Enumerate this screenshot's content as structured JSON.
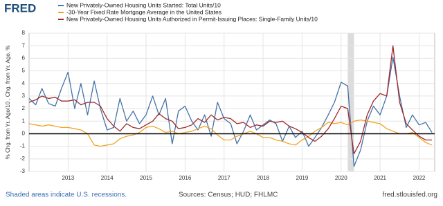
{
  "logo": "FRED",
  "chart_data": {
    "type": "line",
    "y_label": "% Chg. from Yr. Ago/10 , Chg. from Yr. Ago, %",
    "x": [
      2012,
      2012.17,
      2012.33,
      2012.5,
      2012.67,
      2012.83,
      2013,
      2013.17,
      2013.33,
      2013.5,
      2013.67,
      2013.83,
      2014,
      2014.17,
      2014.33,
      2014.5,
      2014.67,
      2014.83,
      2015,
      2015.17,
      2015.33,
      2015.5,
      2015.67,
      2015.83,
      2016,
      2016.17,
      2016.33,
      2016.5,
      2016.67,
      2016.83,
      2017,
      2017.17,
      2017.33,
      2017.5,
      2017.67,
      2017.83,
      2018,
      2018.17,
      2018.33,
      2018.5,
      2018.67,
      2018.83,
      2019,
      2019.17,
      2019.33,
      2019.5,
      2019.67,
      2019.83,
      2020,
      2020.17,
      2020.33,
      2020.5,
      2020.67,
      2020.83,
      2021,
      2021.17,
      2021.33,
      2021.5,
      2021.67,
      2021.83,
      2022,
      2022.17,
      2022.33
    ],
    "series": [
      {
        "name": "New Privately-Owned Housing Units Started: Total Units/10",
        "color": "#4572a7",
        "values": [
          2.8,
          2.3,
          3.6,
          2.4,
          2.2,
          3.6,
          4.9,
          2.0,
          4.0,
          1.5,
          4.2,
          2.0,
          0.3,
          0.5,
          2.8,
          1.0,
          1.8,
          0.8,
          1.5,
          3.0,
          1.5,
          2.8,
          -0.8,
          1.8,
          2.2,
          1.0,
          0.3,
          1.5,
          -0.2,
          2.5,
          1.2,
          0.8,
          -0.8,
          0.2,
          1.5,
          0.3,
          0.7,
          1.1,
          0.8,
          -0.6,
          0.6,
          -0.3,
          0.2,
          -1.0,
          -0.3,
          0.5,
          1.5,
          2.5,
          4.1,
          3.8,
          -2.6,
          -1.3,
          1.0,
          2.2,
          1.5,
          3.0,
          6.1,
          3.0,
          0.5,
          1.5,
          0.7,
          0.9,
          0.1
        ]
      },
      {
        "name": "-30-Year Fixed Rate Mortgage Average in the United States",
        "color": "#f2a324",
        "values": [
          0.8,
          0.7,
          0.6,
          0.7,
          0.6,
          0.5,
          0.5,
          0.4,
          0.3,
          0.0,
          -0.9,
          -1.0,
          -0.9,
          -0.8,
          -0.4,
          -0.2,
          -0.1,
          0.1,
          0.5,
          0.6,
          0.4,
          0.1,
          0.2,
          0.0,
          0.1,
          0.2,
          0.4,
          0.6,
          0.4,
          -0.1,
          -0.5,
          -0.5,
          -0.2,
          0.0,
          0.2,
          0.0,
          -0.3,
          -0.3,
          -0.5,
          -0.6,
          -0.8,
          -0.9,
          -0.5,
          -0.2,
          0.2,
          0.5,
          0.9,
          0.8,
          0.9,
          0.7,
          1.0,
          1.1,
          1.0,
          0.9,
          0.8,
          0.4,
          0.2,
          0.0,
          0.0,
          0.1,
          -0.3,
          -0.7,
          -0.9
        ]
      },
      {
        "name": "New Privately-Owned Housing Units Authorized in Permit-Issuing Places: Single-Family Units/10",
        "color": "#9e2a2b",
        "values": [
          2.5,
          2.7,
          3.0,
          2.8,
          2.9,
          2.6,
          2.6,
          2.7,
          2.3,
          2.5,
          2.5,
          2.2,
          1.2,
          0.6,
          0.2,
          0.8,
          0.5,
          0.4,
          0.7,
          1.0,
          1.6,
          1.2,
          1.0,
          0.4,
          0.5,
          0.7,
          1.2,
          0.9,
          1.5,
          1.1,
          1.3,
          1.2,
          0.8,
          0.9,
          0.5,
          0.7,
          0.6,
          1.0,
          0.9,
          1.0,
          0.6,
          0.4,
          0.1,
          -0.3,
          -0.6,
          -0.2,
          0.4,
          1.2,
          2.2,
          2.0,
          -1.6,
          -0.6,
          1.5,
          2.6,
          3.2,
          3.0,
          7.0,
          2.5,
          0.8,
          0.3,
          -0.2,
          -0.5,
          -0.5
        ]
      }
    ],
    "recessions": [
      {
        "start": 2020.17,
        "end": 2020.33
      }
    ],
    "xlim": [
      2012,
      2022.4
    ],
    "xticks": [
      2013,
      2014,
      2015,
      2016,
      2017,
      2018,
      2019,
      2020,
      2021,
      2022
    ],
    "ylim": [
      -3,
      8
    ],
    "yticks": [
      -3,
      -2,
      -1,
      0,
      1,
      2,
      3,
      4,
      5,
      6,
      7,
      8
    ],
    "grid": true
  },
  "footer": {
    "note": "Shaded areas indicate U.S. recessions.",
    "sources": "Sources: Census; HUD; FHLMC",
    "url": "fred.stlouisfed.org"
  }
}
